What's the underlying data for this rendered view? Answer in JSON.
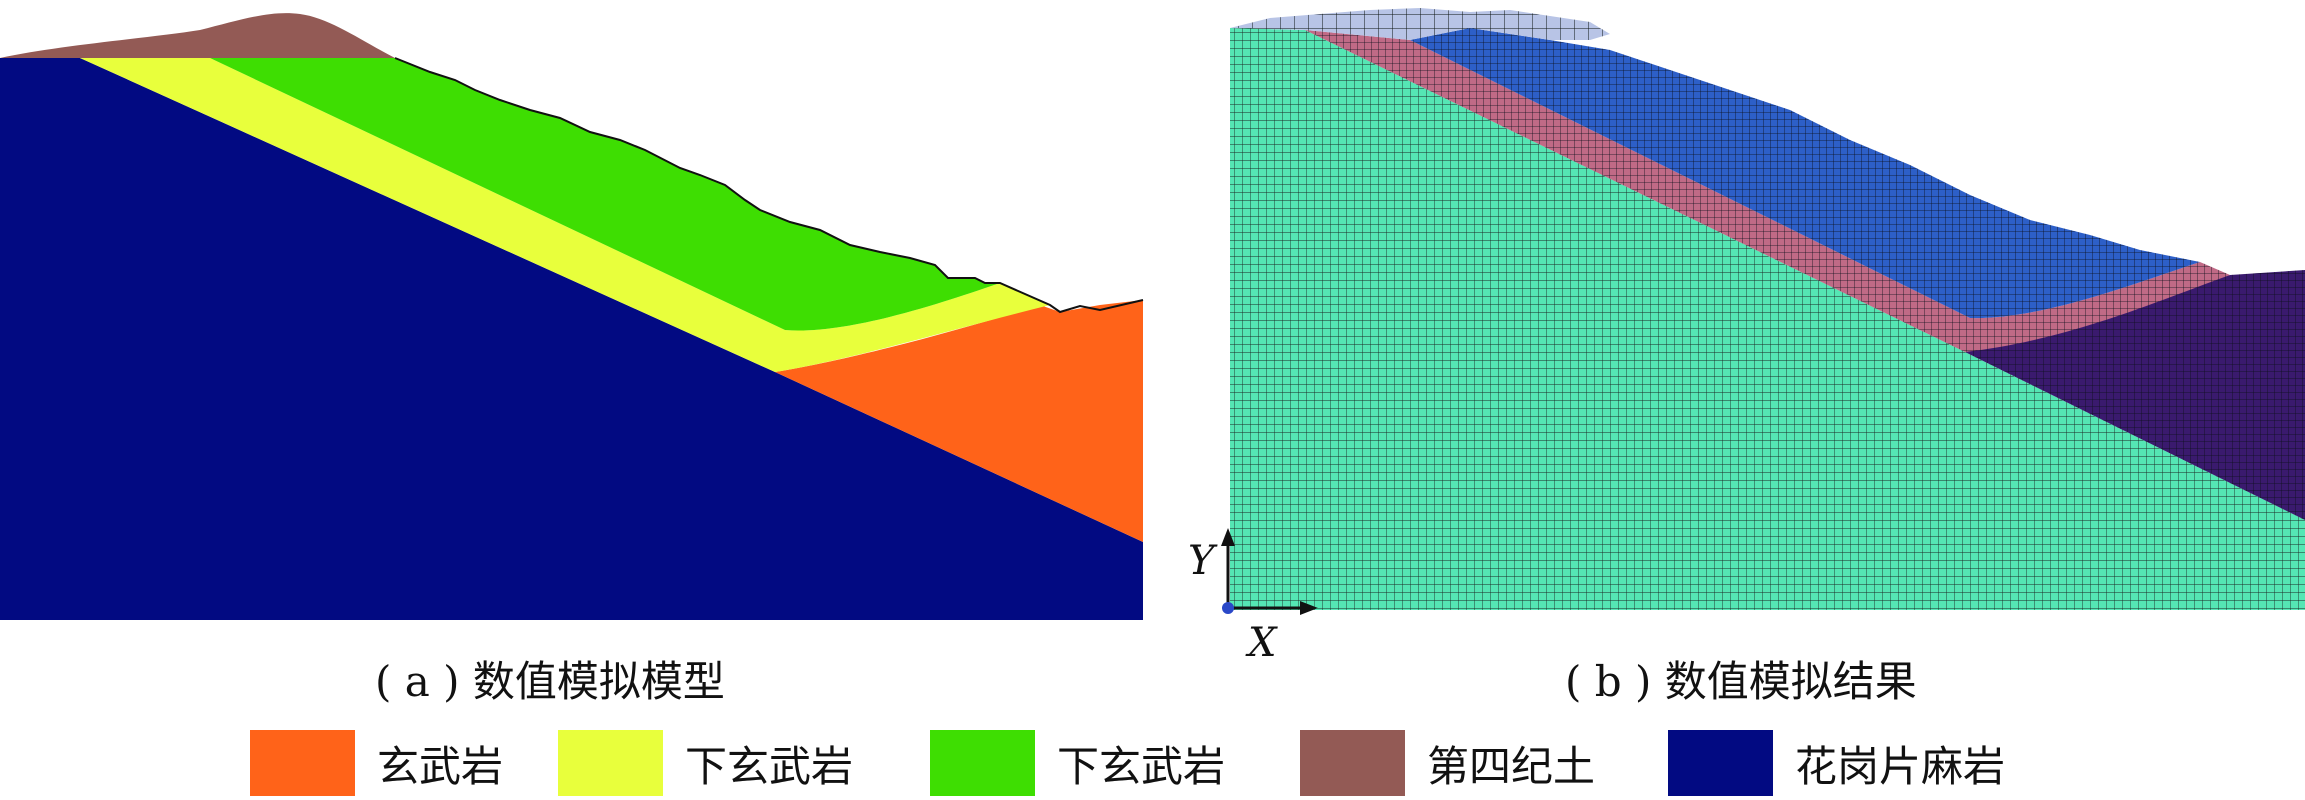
{
  "panels": [
    {
      "caption": "( a ) 数值模拟模型"
    },
    {
      "caption": "( b ) 数值模拟结果"
    }
  ],
  "axes": {
    "x": "X",
    "y": "Y"
  },
  "legend": [
    {
      "label": "玄武岩",
      "color": "#ff6319"
    },
    {
      "label": "下玄武岩",
      "color": "#e8ff3c"
    },
    {
      "label": "下玄武岩",
      "color": "#3ede02"
    },
    {
      "label": "第四纪土",
      "color": "#935a55"
    },
    {
      "label": "花岗片麻岩",
      "color": "#020a82"
    }
  ],
  "mesh_colors": {
    "granite": "#55e6b4",
    "basalt_lower": "#c06a86",
    "basalt_upper": "#2d5fc8",
    "basalt_toe": "#3a1a6e",
    "soil_top": "#b8c4e6"
  }
}
